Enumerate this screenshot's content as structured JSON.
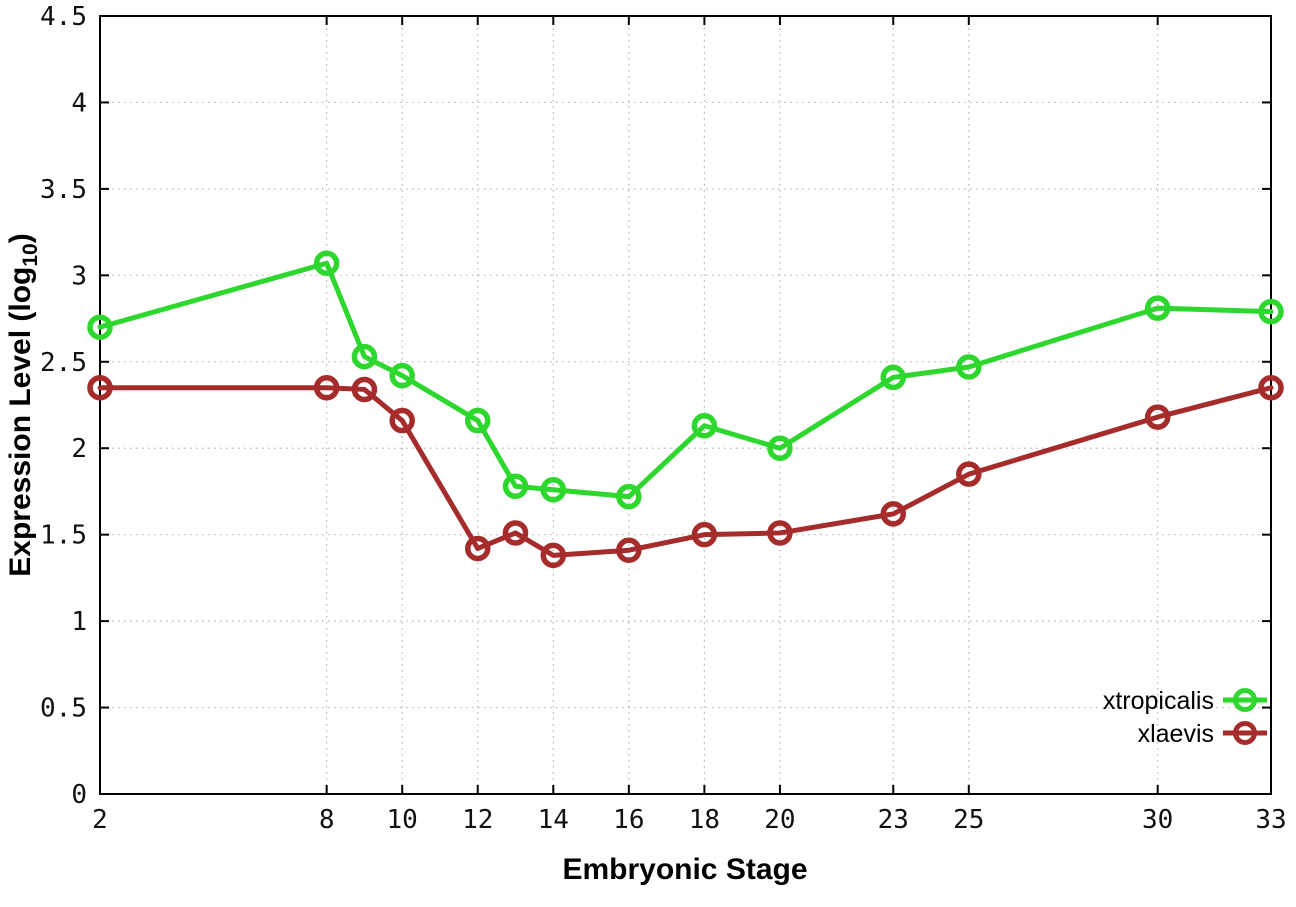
{
  "figure": {
    "background": "#ffffff",
    "frame_color": "#000000",
    "grid_color": "#b5b5b5",
    "tick_label_color": "#111111"
  },
  "chart_data": {
    "type": "line",
    "title": "",
    "xlabel": "Embryonic Stage",
    "ylabel": {
      "prefix": "Expression Level (log",
      "subscript": "10",
      "suffix": ")"
    },
    "xlim": [
      2,
      33
    ],
    "ylim": [
      0,
      4.5
    ],
    "grid": true,
    "legend_position": "inside-right-bottom",
    "x_ticks": {
      "values": [
        2,
        8,
        10,
        12,
        14,
        16,
        18,
        20,
        23,
        25,
        30,
        33
      ],
      "labels": [
        "2",
        "8",
        "10",
        "12",
        "14",
        "16",
        "18",
        "20",
        "23",
        "25",
        "30",
        "33"
      ]
    },
    "y_ticks": {
      "values": [
        0,
        0.5,
        1,
        1.5,
        2,
        2.5,
        3,
        3.5,
        4,
        4.5
      ],
      "labels": [
        "0",
        "0.5",
        "1",
        "1.5",
        "2",
        "2.5",
        "3",
        "3.5",
        "4",
        "4.5"
      ]
    },
    "x": [
      2,
      8,
      9,
      10,
      12,
      13,
      14,
      16,
      18,
      20,
      23,
      25,
      30,
      33
    ],
    "series": [
      {
        "name": "xtropicalis",
        "color": "#2dd72d",
        "marker": "open-circle",
        "values": [
          2.7,
          3.07,
          2.53,
          2.42,
          2.16,
          1.78,
          1.76,
          1.72,
          2.13,
          2.0,
          2.41,
          2.47,
          2.81,
          2.79
        ]
      },
      {
        "name": "xlaevis",
        "color": "#a62b2b",
        "marker": "open-circle",
        "values": [
          2.35,
          2.35,
          2.34,
          2.16,
          1.42,
          1.51,
          1.38,
          1.41,
          1.5,
          1.51,
          1.62,
          1.85,
          2.18,
          2.35
        ]
      }
    ]
  }
}
